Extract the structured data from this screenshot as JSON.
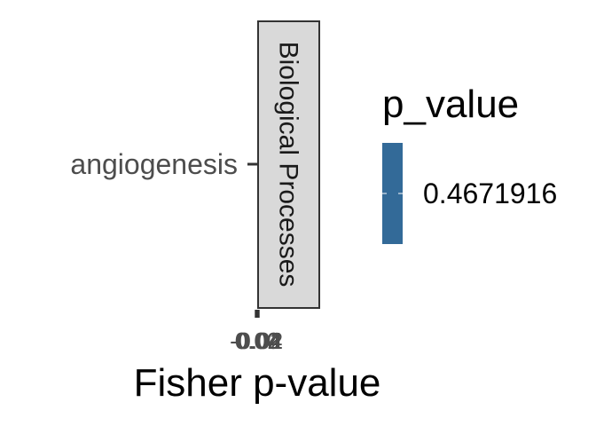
{
  "chart_data": {
    "type": "bar",
    "orientation": "horizontal",
    "categories": [
      "angiogenesis"
    ],
    "values": [
      0
    ],
    "facet_label": "Biological Processes",
    "xlabel": "Fisher p-value",
    "ylabel": "",
    "x_ticks": [
      "-0.04",
      "-0.02",
      "0.00",
      "0.02",
      "0.04"
    ],
    "xlim": [
      -0.05,
      0.05
    ],
    "grid": false,
    "legend": {
      "title": "p_value",
      "placement": "right",
      "entries": [
        {
          "label": "0.4671916",
          "value": 0.4671916,
          "color": "#336a98"
        }
      ]
    },
    "colors": {
      "bar": "#336a98",
      "strip_fill": "#d9d9d9",
      "strip_border": "#333333",
      "axis": "#333333"
    }
  }
}
